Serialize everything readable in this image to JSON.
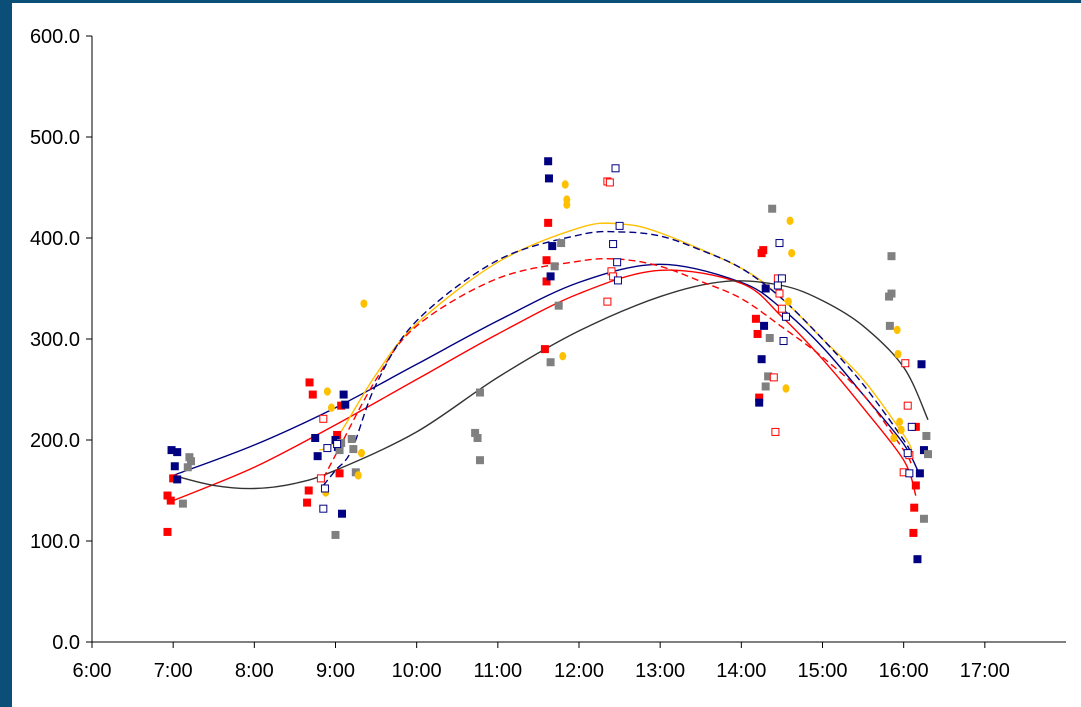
{
  "colors": {
    "background": "#ffffff",
    "frame_band": "#0b4f79",
    "axis": "#000000",
    "red": "#ff0000",
    "navy": "#000080",
    "gray": "#808080",
    "gold": "#ffc000",
    "dark": "#333333"
  },
  "chart_data": {
    "type": "scatter",
    "title": "",
    "xlabel": "",
    "ylabel": "",
    "x_unit": "hours (time of day)",
    "xlim": [
      6,
      18
    ],
    "ylim": [
      0,
      600
    ],
    "x_ticks": [
      {
        "value": 6,
        "label": "6:00"
      },
      {
        "value": 7,
        "label": "7:00"
      },
      {
        "value": 8,
        "label": "8:00"
      },
      {
        "value": 9,
        "label": "9:00"
      },
      {
        "value": 10,
        "label": "10:00"
      },
      {
        "value": 11,
        "label": "11:00"
      },
      {
        "value": 12,
        "label": "12:00"
      },
      {
        "value": 13,
        "label": "13:00"
      },
      {
        "value": 14,
        "label": "14:00"
      },
      {
        "value": 15,
        "label": "15:00"
      },
      {
        "value": 16,
        "label": "16:00"
      },
      {
        "value": 17,
        "label": "17:00"
      }
    ],
    "y_ticks": [
      {
        "value": 0,
        "label": "0.0"
      },
      {
        "value": 100,
        "label": "100.0"
      },
      {
        "value": 200,
        "label": "200.0"
      },
      {
        "value": 300,
        "label": "300.0"
      },
      {
        "value": 400,
        "label": "400.0"
      },
      {
        "value": 500,
        "label": "500.0"
      },
      {
        "value": 600,
        "label": "600.0"
      }
    ],
    "grid": false,
    "legend": "none",
    "series": [
      {
        "key": "red-filled",
        "marker": "filled-square",
        "color": "#ff0000",
        "points": [
          [
            6.93,
            109
          ],
          [
            6.93,
            145
          ],
          [
            6.97,
            140
          ],
          [
            7.0,
            162
          ],
          [
            8.65,
            138
          ],
          [
            8.67,
            150
          ],
          [
            8.68,
            257
          ],
          [
            8.72,
            245
          ],
          [
            9.02,
            205
          ],
          [
            9.05,
            167
          ],
          [
            9.07,
            234
          ],
          [
            11.58,
            290
          ],
          [
            11.6,
            357
          ],
          [
            11.6,
            378
          ],
          [
            11.62,
            415
          ],
          [
            14.18,
            320
          ],
          [
            14.2,
            305
          ],
          [
            14.22,
            242
          ],
          [
            14.25,
            385
          ],
          [
            14.27,
            388
          ],
          [
            16.12,
            108
          ],
          [
            16.13,
            133
          ],
          [
            16.15,
            155
          ],
          [
            16.15,
            213
          ]
        ]
      },
      {
        "key": "navy-filled",
        "marker": "filled-square",
        "color": "#000080",
        "points": [
          [
            6.98,
            190
          ],
          [
            7.02,
            174
          ],
          [
            7.05,
            161
          ],
          [
            7.05,
            188
          ],
          [
            8.75,
            202
          ],
          [
            8.78,
            184
          ],
          [
            9.0,
            200
          ],
          [
            9.03,
            193
          ],
          [
            9.08,
            127
          ],
          [
            9.1,
            245
          ],
          [
            9.12,
            235
          ],
          [
            11.62,
            476
          ],
          [
            11.63,
            459
          ],
          [
            11.65,
            362
          ],
          [
            11.67,
            392
          ],
          [
            14.22,
            237
          ],
          [
            14.25,
            280
          ],
          [
            14.28,
            313
          ],
          [
            14.3,
            350
          ],
          [
            16.17,
            82
          ],
          [
            16.2,
            167
          ],
          [
            16.22,
            275
          ],
          [
            16.25,
            190
          ]
        ]
      },
      {
        "key": "gray-filled",
        "marker": "filled-square",
        "color": "#808080",
        "points": [
          [
            7.12,
            137
          ],
          [
            7.18,
            173
          ],
          [
            7.2,
            183
          ],
          [
            7.22,
            179
          ],
          [
            9.0,
            106
          ],
          [
            9.05,
            190
          ],
          [
            9.07,
            197
          ],
          [
            9.2,
            201
          ],
          [
            9.22,
            191
          ],
          [
            9.25,
            168
          ],
          [
            10.72,
            207
          ],
          [
            10.75,
            202
          ],
          [
            10.78,
            180
          ],
          [
            10.78,
            247
          ],
          [
            11.65,
            277
          ],
          [
            11.7,
            372
          ],
          [
            11.75,
            333
          ],
          [
            11.78,
            395
          ],
          [
            14.3,
            253
          ],
          [
            14.33,
            263
          ],
          [
            14.35,
            301
          ],
          [
            14.38,
            429
          ],
          [
            15.82,
            342
          ],
          [
            15.83,
            313
          ],
          [
            15.85,
            382
          ],
          [
            15.85,
            345
          ],
          [
            16.25,
            122
          ],
          [
            16.28,
            204
          ],
          [
            16.3,
            186
          ]
        ]
      },
      {
        "key": "gold-filled",
        "marker": "filled-circle",
        "color": "#ffc000",
        "points": [
          [
            8.88,
            148
          ],
          [
            8.9,
            248
          ],
          [
            8.95,
            232
          ],
          [
            9.28,
            165
          ],
          [
            9.32,
            187
          ],
          [
            9.35,
            335
          ],
          [
            11.8,
            283
          ],
          [
            11.83,
            453
          ],
          [
            11.85,
            438
          ],
          [
            11.85,
            433
          ],
          [
            14.55,
            251
          ],
          [
            14.58,
            337
          ],
          [
            14.6,
            417
          ],
          [
            14.62,
            385
          ],
          [
            15.88,
            202
          ],
          [
            15.92,
            309
          ],
          [
            15.93,
            285
          ],
          [
            15.95,
            218
          ],
          [
            15.97,
            210
          ]
        ]
      },
      {
        "key": "red-hollow",
        "marker": "hollow-square",
        "color": "#ff0000",
        "points": [
          [
            8.82,
            162
          ],
          [
            8.85,
            221
          ],
          [
            12.35,
            456
          ],
          [
            12.38,
            455
          ],
          [
            12.4,
            367
          ],
          [
            12.42,
            362
          ],
          [
            12.35,
            337
          ],
          [
            14.4,
            262
          ],
          [
            14.42,
            208
          ],
          [
            14.45,
            360
          ],
          [
            14.47,
            345
          ],
          [
            14.5,
            330
          ],
          [
            16.0,
            168
          ],
          [
            16.02,
            276
          ],
          [
            16.05,
            234
          ],
          [
            16.07,
            185
          ]
        ]
      },
      {
        "key": "navy-hollow",
        "marker": "hollow-square",
        "color": "#000080",
        "points": [
          [
            8.85,
            132
          ],
          [
            8.87,
            152
          ],
          [
            8.9,
            192
          ],
          [
            9.02,
            196
          ],
          [
            12.42,
            394
          ],
          [
            12.45,
            469
          ],
          [
            12.47,
            376
          ],
          [
            12.48,
            358
          ],
          [
            12.5,
            412
          ],
          [
            14.45,
            353
          ],
          [
            14.47,
            395
          ],
          [
            14.5,
            360
          ],
          [
            14.52,
            298
          ],
          [
            14.55,
            322
          ],
          [
            16.05,
            187
          ],
          [
            16.07,
            167
          ],
          [
            16.1,
            213
          ]
        ]
      }
    ],
    "trendlines": [
      {
        "key": "navy-solid",
        "color": "#000080",
        "style": "solid",
        "points": [
          [
            7.0,
            165
          ],
          [
            8.0,
            195
          ],
          [
            9.0,
            232
          ],
          [
            10.0,
            275
          ],
          [
            11.0,
            318
          ],
          [
            12.0,
            356
          ],
          [
            13.0,
            374
          ],
          [
            14.0,
            356
          ],
          [
            14.5,
            330
          ],
          [
            15.0,
            292
          ],
          [
            15.5,
            245
          ],
          [
            16.0,
            196
          ],
          [
            16.2,
            165
          ]
        ]
      },
      {
        "key": "red-solid",
        "color": "#ff0000",
        "style": "solid",
        "points": [
          [
            7.0,
            140
          ],
          [
            8.0,
            173
          ],
          [
            9.0,
            215
          ],
          [
            10.0,
            260
          ],
          [
            11.0,
            305
          ],
          [
            12.0,
            345
          ],
          [
            13.0,
            368
          ],
          [
            14.0,
            355
          ],
          [
            14.5,
            322
          ],
          [
            15.0,
            280
          ],
          [
            15.5,
            232
          ],
          [
            16.0,
            180
          ],
          [
            16.15,
            145
          ]
        ]
      },
      {
        "key": "gold-solid",
        "color": "#ffc000",
        "style": "solid",
        "points": [
          [
            8.8,
            190
          ],
          [
            9.0,
            200
          ],
          [
            9.5,
            265
          ],
          [
            10.0,
            315
          ],
          [
            11.0,
            376
          ],
          [
            12.0,
            410
          ],
          [
            12.5,
            414
          ],
          [
            13.0,
            405
          ],
          [
            14.0,
            370
          ],
          [
            14.5,
            340
          ],
          [
            15.0,
            300
          ],
          [
            15.5,
            260
          ],
          [
            16.0,
            205
          ],
          [
            16.1,
            190
          ]
        ]
      },
      {
        "key": "dark-solid",
        "color": "#333333",
        "style": "solid",
        "points": [
          [
            7.0,
            165
          ],
          [
            7.5,
            155
          ],
          [
            8.0,
            152
          ],
          [
            8.5,
            157
          ],
          [
            9.0,
            170
          ],
          [
            10.0,
            208
          ],
          [
            11.0,
            262
          ],
          [
            12.0,
            308
          ],
          [
            13.0,
            342
          ],
          [
            13.8,
            357
          ],
          [
            14.5,
            353
          ],
          [
            15.0,
            338
          ],
          [
            15.5,
            313
          ],
          [
            16.0,
            272
          ],
          [
            16.3,
            220
          ]
        ]
      },
      {
        "key": "red-dashed",
        "color": "#ff0000",
        "style": "dashed",
        "points": [
          [
            8.85,
            162
          ],
          [
            9.0,
            185
          ],
          [
            9.5,
            260
          ],
          [
            10.0,
            313
          ],
          [
            11.0,
            360
          ],
          [
            12.0,
            377
          ],
          [
            12.5,
            379
          ],
          [
            13.0,
            372
          ],
          [
            13.5,
            357
          ],
          [
            14.0,
            340
          ],
          [
            14.5,
            312
          ],
          [
            15.0,
            282
          ],
          [
            15.5,
            245
          ],
          [
            16.0,
            190
          ],
          [
            16.1,
            175
          ]
        ]
      },
      {
        "key": "navy-dashed",
        "color": "#000080",
        "style": "dashed",
        "points": [
          [
            8.85,
            155
          ],
          [
            9.0,
            170
          ],
          [
            9.2,
            190
          ],
          [
            9.5,
            255
          ],
          [
            10.0,
            318
          ],
          [
            11.0,
            378
          ],
          [
            12.0,
            403
          ],
          [
            12.5,
            406
          ],
          [
            13.0,
            402
          ],
          [
            13.5,
            388
          ],
          [
            14.0,
            370
          ],
          [
            14.5,
            340
          ],
          [
            15.0,
            300
          ],
          [
            15.5,
            255
          ],
          [
            16.0,
            200
          ],
          [
            16.1,
            185
          ]
        ]
      }
    ]
  }
}
